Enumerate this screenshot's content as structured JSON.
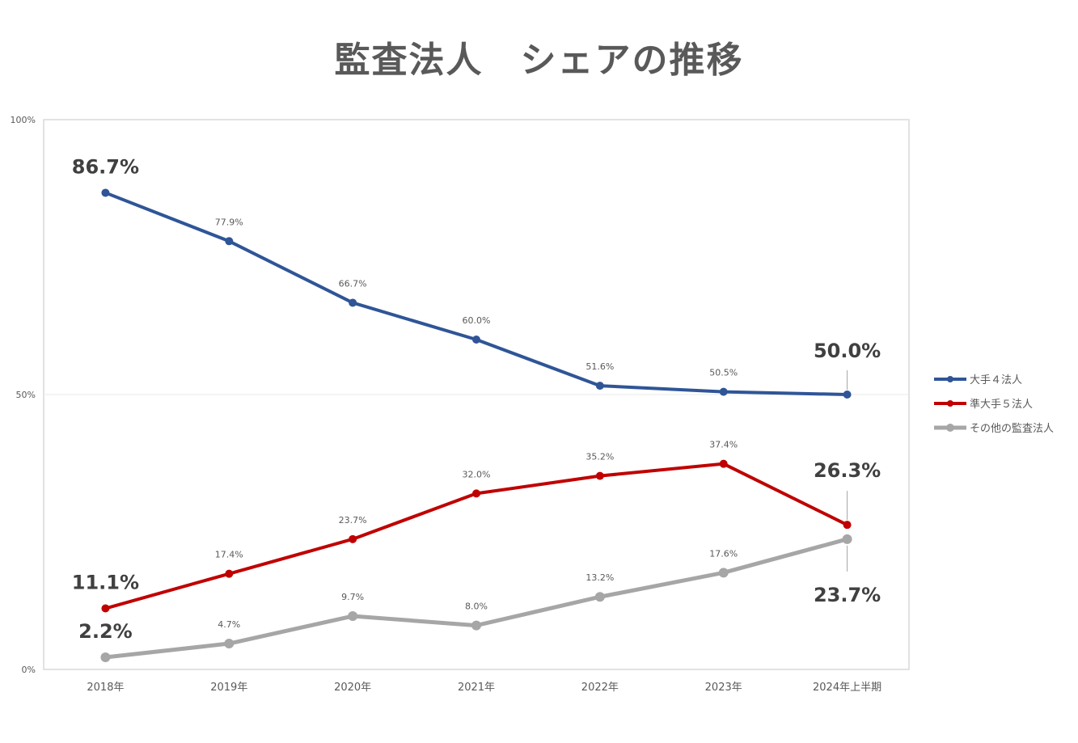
{
  "chart_data": {
    "type": "line",
    "title": "監査法人　シェアの推移",
    "categories": [
      "2018年",
      "2019年",
      "2020年",
      "2021年",
      "2022年",
      "2023年",
      "2024年上半期"
    ],
    "ylim": [
      0,
      100
    ],
    "y_ticks": [
      "0%",
      "50%",
      "100%"
    ],
    "y_tick_values": [
      0,
      50,
      100
    ],
    "series": [
      {
        "name": "大手４法人",
        "color": "#2F5597",
        "values": [
          86.7,
          77.9,
          66.7,
          60.0,
          51.6,
          50.5,
          50.0
        ],
        "labels": [
          "86.7%",
          "77.9%",
          "66.7%",
          "60.0%",
          "51.6%",
          "50.5%",
          "50.0%"
        ]
      },
      {
        "name": "準大手５法人",
        "color": "#C00000",
        "values": [
          11.1,
          17.4,
          23.7,
          32.0,
          35.2,
          37.4,
          26.3
        ],
        "labels": [
          "11.1%",
          "17.4%",
          "23.7%",
          "32.0%",
          "35.2%",
          "37.4%",
          "26.3%"
        ]
      },
      {
        "name": "その他の監査法人",
        "color": "#A6A6A6",
        "values": [
          2.2,
          4.7,
          9.7,
          8.0,
          13.2,
          17.6,
          23.7
        ],
        "labels": [
          "2.2%",
          "4.7%",
          "9.7%",
          "8.0%",
          "13.2%",
          "17.6%",
          "23.7%"
        ]
      }
    ],
    "gridlines": "50% only",
    "legend_position": "right"
  }
}
